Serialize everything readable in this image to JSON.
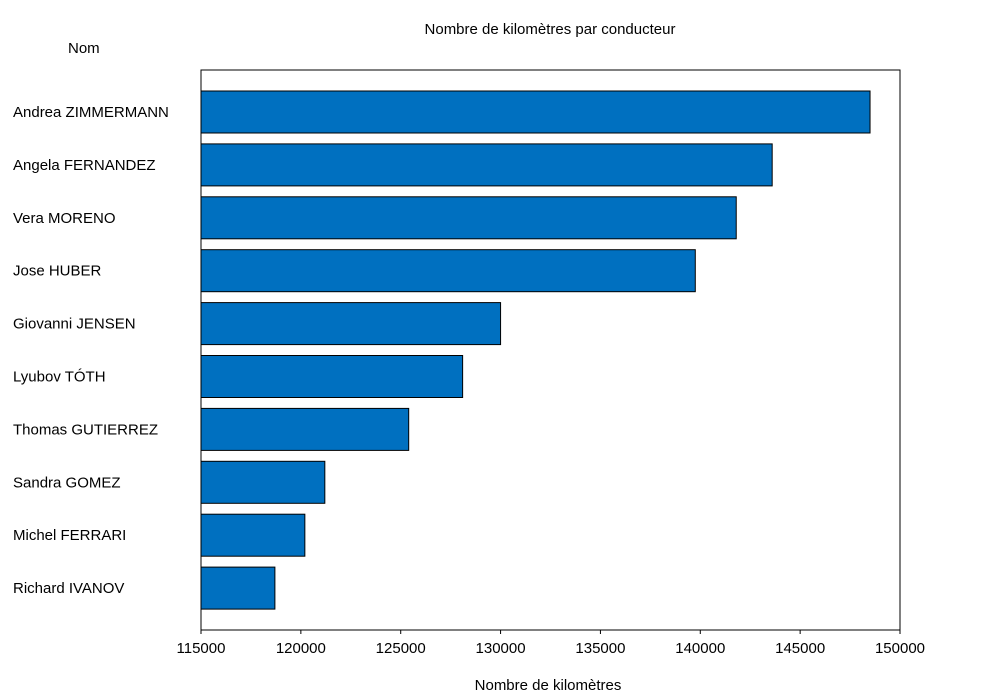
{
  "chart_data": {
    "type": "bar",
    "orientation": "horizontal",
    "title": "Nombre de kilomètres par conducteur",
    "xlabel": "Nombre de kilomètres",
    "ylabel": "Nom",
    "xlim": [
      115000,
      150000
    ],
    "xticks": [
      115000,
      120000,
      125000,
      130000,
      135000,
      140000,
      145000,
      150000
    ],
    "tick_labels": [
      "115000",
      "120000",
      "125000",
      "130000",
      "135000",
      "140000",
      "145000",
      "150000"
    ],
    "categories": [
      "Andrea ZIMMERMANN",
      "Angela FERNANDEZ",
      "Vera MORENO",
      "Jose HUBER",
      "Giovanni JENSEN",
      "Lyubov TÓTH",
      "Thomas GUTIERREZ",
      "Sandra GOMEZ",
      "Michel FERRARI",
      "Richard IVANOV"
    ],
    "values": [
      148500,
      143600,
      141800,
      139750,
      130000,
      128100,
      125400,
      121200,
      120200,
      118700
    ],
    "grid": false,
    "legend": "none",
    "colors": {
      "bar": "#0070C0",
      "bar_edge": "#000000",
      "frame": "#000000"
    }
  }
}
